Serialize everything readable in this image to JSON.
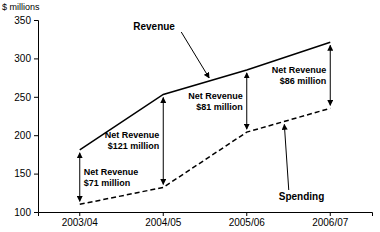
{
  "chart_data": {
    "type": "line",
    "y_label": "$ millions",
    "categories": [
      "2003/04",
      "2004/05",
      "2005/06",
      "2006/07"
    ],
    "series": [
      {
        "name": "Revenue",
        "color": "#000000",
        "line_style": "solid",
        "values": [
          181,
          253,
          285,
          321
        ]
      },
      {
        "name": "Spending",
        "color": "#000000",
        "line_style": "dashed",
        "values": [
          110,
          132,
          204,
          235
        ]
      }
    ],
    "annotations": [
      [
        "Net Revenue",
        "$71 million"
      ],
      [
        "Net Revenue",
        "$121 million"
      ],
      [
        "Net Revenue",
        "$81 million"
      ],
      [
        "Net Revenue",
        "$86 million"
      ]
    ],
    "ylim": [
      100,
      350
    ],
    "yticks": [
      100,
      150,
      200,
      250,
      300,
      350
    ],
    "grid": false
  }
}
